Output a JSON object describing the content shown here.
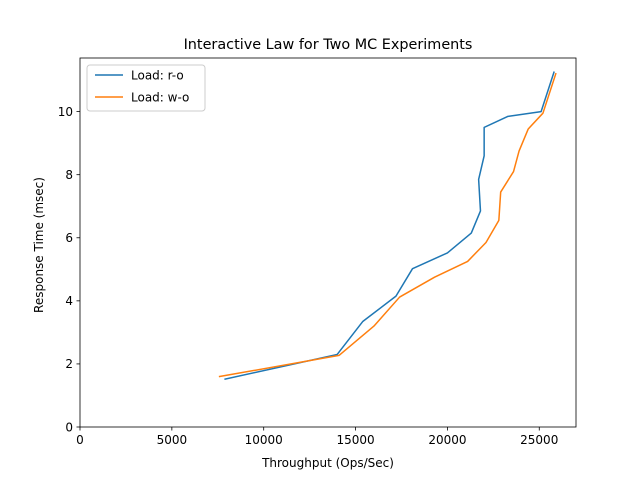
{
  "chart_data": {
    "type": "line",
    "title": "Interactive Law for Two MC Experiments",
    "xlabel": "Throughput (Ops/Sec)",
    "ylabel": "Response Time (msec)",
    "xlim": [
      0,
      27000
    ],
    "ylim": [
      0,
      11.7
    ],
    "xticks": [
      0,
      5000,
      10000,
      15000,
      20000,
      25000
    ],
    "yticks": [
      0,
      2,
      4,
      6,
      8,
      10
    ],
    "grid": false,
    "legend_position": "top-left",
    "series": [
      {
        "name": "Load: r-o",
        "color": "#1f77b4",
        "x": [
          7900,
          14000,
          15400,
          17200,
          18100,
          20000,
          21300,
          21800,
          21700,
          22000,
          22000,
          23300,
          25100,
          25800
        ],
        "y": [
          1.52,
          2.3,
          3.35,
          4.15,
          5.02,
          5.52,
          6.15,
          6.85,
          7.85,
          8.6,
          9.5,
          9.85,
          10.0,
          11.25
        ]
      },
      {
        "name": "Load: w-o",
        "color": "#ff7f0e",
        "x": [
          7600,
          14100,
          16000,
          17400,
          19300,
          21100,
          22100,
          22800,
          22900,
          23600,
          23900,
          24400,
          25200,
          25900
        ],
        "y": [
          1.6,
          2.27,
          3.2,
          4.12,
          4.75,
          5.25,
          5.85,
          6.55,
          7.45,
          8.1,
          8.75,
          9.45,
          9.95,
          11.2
        ]
      }
    ]
  }
}
